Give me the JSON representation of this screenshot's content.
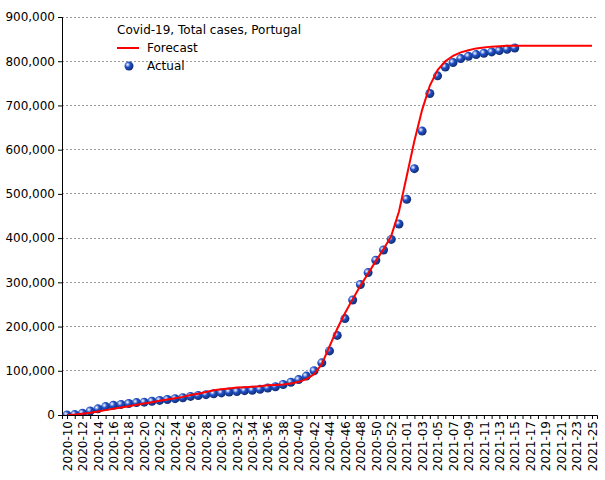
{
  "chart_data": {
    "type": "line",
    "title": "Covid-19, Total cases, Portugal",
    "categories": [
      "2020-10",
      null,
      "2020-12",
      null,
      "2020-14",
      null,
      "2020-16",
      null,
      "2020-18",
      null,
      "2020-20",
      null,
      "2020-22",
      null,
      "2020-24",
      null,
      "2020-26",
      null,
      "2020-28",
      null,
      "2020-30",
      null,
      "2020-32",
      null,
      "2020-34",
      null,
      "2020-36",
      null,
      "2020-38",
      null,
      "2020-40",
      null,
      "2020-42",
      null,
      "2020-44",
      null,
      "2020-46",
      null,
      "2020-48",
      null,
      "2020-50",
      null,
      "2020-52",
      null,
      "2021-01",
      null,
      "2021-03",
      null,
      "2021-05",
      null,
      "2021-07",
      null,
      "2021-09",
      null,
      "2021-11",
      null,
      "2021-13",
      null,
      "2021-15",
      null,
      "2021-17",
      null,
      "2021-19",
      null,
      "2021-21",
      null,
      "2021-23",
      null,
      "2021-25"
    ],
    "series": [
      {
        "name": "Forecast",
        "type": "line",
        "color": "#ff0000",
        "line_style": "solid",
        "values": [
          0,
          1000,
          3000,
          5000,
          8000,
          11000,
          14000,
          17000,
          20000,
          23000,
          26000,
          29000,
          32000,
          35000,
          38000,
          41000,
          45000,
          48000,
          52000,
          56000,
          58000,
          60000,
          62000,
          63000,
          64000,
          65000,
          67000,
          68000,
          69000,
          71000,
          75000,
          81000,
          92000,
          115000,
          155000,
          195000,
          230000,
          262000,
          292000,
          320000,
          348000,
          375000,
          405000,
          460000,
          540000,
          620000,
          690000,
          745000,
          780000,
          800000,
          812000,
          820000,
          825000,
          829000,
          831000,
          833000,
          834000,
          835000,
          835000,
          835000,
          835000,
          835000,
          835000,
          835000,
          835000,
          835000,
          835000,
          835000,
          835000
        ]
      },
      {
        "name": "Actual",
        "type": "scatter",
        "color": "#1f4fc8",
        "marker": "circle",
        "values": [
          0,
          1000,
          4000,
          9000,
          14000,
          19000,
          22000,
          24000,
          26000,
          28000,
          29000,
          31000,
          33000,
          35000,
          37000,
          39000,
          42000,
          44000,
          46000,
          48000,
          50000,
          52000,
          53000,
          55000,
          56000,
          58000,
          61000,
          64000,
          69000,
          74000,
          80000,
          88000,
          100000,
          118000,
          145000,
          180000,
          218000,
          260000,
          295000,
          322000,
          350000,
          373000,
          397000,
          432000,
          488000,
          557000,
          642000,
          727000,
          767000,
          787000,
          797000,
          806000,
          811000,
          815000,
          818000,
          821000,
          824000,
          827000,
          830000,
          null,
          null,
          null,
          null,
          null,
          null,
          null,
          null,
          null,
          null
        ]
      }
    ],
    "ylim": [
      0,
      900000
    ],
    "yticks": [
      0,
      {
        "value": 100000,
        "label": "100,000"
      },
      {
        "value": 200000,
        "label": "200,000"
      },
      {
        "value": 300000,
        "label": "300,000"
      },
      {
        "value": 400000,
        "label": "400,000"
      },
      {
        "value": 500000,
        "label": "500,000"
      },
      {
        "value": 600000,
        "label": "600,000"
      },
      {
        "value": 700000,
        "label": "700,000"
      },
      {
        "value": 800000,
        "label": "800,000"
      },
      {
        "value": 900000,
        "label": "900,000"
      }
    ],
    "grid": true,
    "legend": "top-left"
  }
}
